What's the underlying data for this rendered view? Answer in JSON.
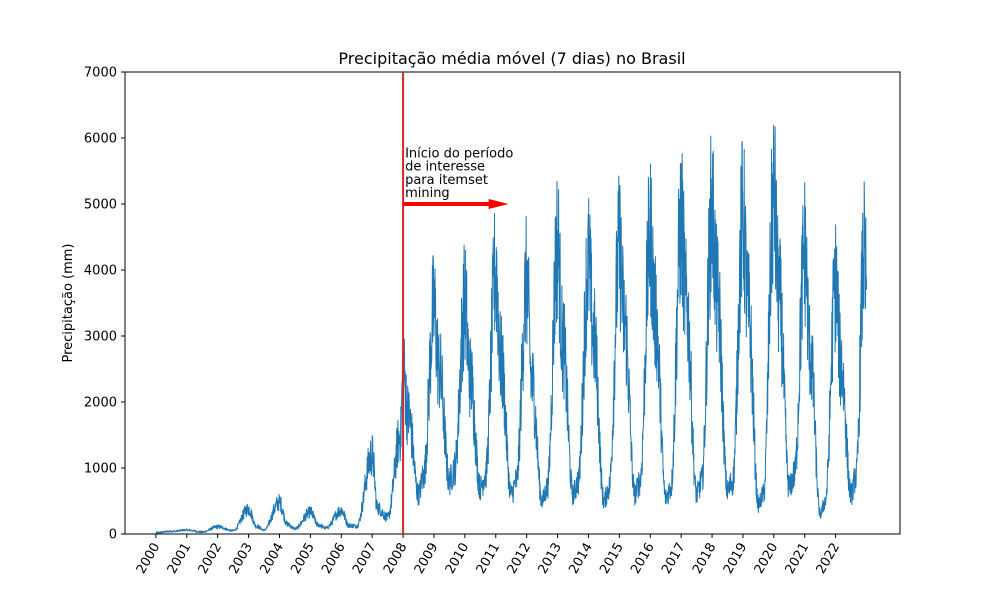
{
  "chart_data": {
    "type": "line",
    "title": "Precipitação média móvel (7 dias) no Brasil",
    "xlabel": "",
    "ylabel": "Precipitação (mm)",
    "ylim": [
      0,
      7000
    ],
    "yticks": [
      0,
      1000,
      2000,
      3000,
      4000,
      5000,
      6000,
      7000
    ],
    "xlim": [
      "1999-01-01",
      "2024-02-01"
    ],
    "xticks": [
      "2000",
      "2001",
      "2002",
      "2003",
      "2004",
      "2005",
      "2006",
      "2007",
      "2008",
      "2009",
      "2010",
      "2011",
      "2012",
      "2013",
      "2014",
      "2015",
      "2016",
      "2017",
      "2018",
      "2019",
      "2020",
      "2021",
      "2022"
    ],
    "grid": false,
    "series_color": "#1f77b4",
    "series": [
      {
        "x": [
          "2000-01",
          "2000-07",
          "2001-01",
          "2001-07",
          "2002-01",
          "2002-07",
          "2003-01",
          "2003-04",
          "2003-07",
          "2004-01",
          "2004-04",
          "2004-07",
          "2005-01",
          "2005-04",
          "2005-07",
          "2006-01",
          "2006-04",
          "2006-07",
          "2007-01",
          "2007-03",
          "2007-07",
          "2007-12",
          "2008-01",
          "2008-03",
          "2008-07",
          "2008-09",
          "2009-01",
          "2009-03",
          "2009-07",
          "2009-09",
          "2010-01",
          "2010-03",
          "2010-07",
          "2010-09",
          "2011-01",
          "2011-03",
          "2011-07",
          "2011-09",
          "2012-01",
          "2012-03",
          "2012-07",
          "2012-09",
          "2013-01",
          "2013-03",
          "2013-07",
          "2013-09",
          "2014-01",
          "2014-03",
          "2014-07",
          "2014-09",
          "2015-01",
          "2015-03",
          "2015-07",
          "2015-09",
          "2016-01",
          "2016-03",
          "2016-07",
          "2016-09",
          "2017-01",
          "2017-03",
          "2017-07",
          "2017-09",
          "2018-01",
          "2018-03",
          "2018-07",
          "2018-09",
          "2019-01",
          "2019-03",
          "2019-07",
          "2019-09",
          "2020-01",
          "2020-03",
          "2020-07",
          "2020-09",
          "2021-01",
          "2021-03",
          "2021-07",
          "2021-09",
          "2022-01",
          "2022-03",
          "2022-07",
          "2022-09",
          "2022-12",
          "2023-01"
        ],
        "values": [
          20,
          40,
          60,
          30,
          110,
          50,
          380,
          120,
          60,
          480,
          150,
          80,
          330,
          140,
          90,
          360,
          130,
          120,
          1200,
          400,
          250,
          1500,
          2500,
          1800,
          600,
          900,
          3400,
          2500,
          800,
          1000,
          3500,
          2400,
          700,
          900,
          4000,
          2600,
          600,
          800,
          3800,
          2300,
          500,
          700,
          4400,
          2900,
          600,
          800,
          4100,
          3000,
          500,
          700,
          4300,
          3200,
          600,
          800,
          4500,
          3300,
          550,
          700,
          4700,
          3500,
          600,
          800,
          4900,
          3600,
          650,
          800,
          4800,
          3400,
          450,
          600,
          5100,
          3600,
          700,
          900,
          4300,
          2800,
          300,
          500,
          3800,
          2600,
          600,
          900,
          4200,
          3700
        ]
      }
    ],
    "vline": {
      "x": "2008-01-01",
      "color": "#d62728"
    },
    "annotation": {
      "lines": [
        "Início do período",
        "de interesse",
        "para itemset",
        "mining"
      ],
      "arrow_from": [
        "2008-01-01",
        5000
      ],
      "arrow_to": [
        "2011-06-01",
        5000
      ],
      "arrow_color": "#ff0000"
    }
  }
}
